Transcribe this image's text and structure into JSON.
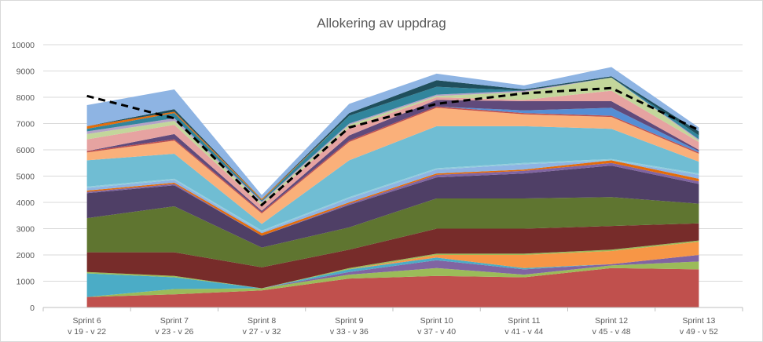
{
  "chart_data": {
    "type": "area",
    "stacked": true,
    "title": "Allokering av uppdrag",
    "categories": [
      [
        "Sprint 6",
        "v 19 - v 22"
      ],
      [
        "Sprint 7",
        "v 23 - v 26"
      ],
      [
        "Sprint 8",
        "v 27 - v 32"
      ],
      [
        "Sprint 9",
        "v 33 - v 36"
      ],
      [
        "Sprint 10",
        "v 37 - v 40"
      ],
      [
        "Sprint 11",
        "v 41 - v 44"
      ],
      [
        "Sprint 12",
        "v 45 - v 48"
      ],
      [
        "Sprint 13",
        "v 49 - v 52"
      ]
    ],
    "ylim": [
      0,
      10000
    ],
    "yticks": [
      0,
      1000,
      2000,
      3000,
      4000,
      5000,
      6000,
      7000,
      8000,
      9000,
      10000
    ],
    "grid": true,
    "legend": "none",
    "series": [
      {
        "color": "#c0504d",
        "values": [
          400,
          500,
          650,
          1100,
          1200,
          1150,
          1500,
          1450
        ]
      },
      {
        "color": "#9bbb59",
        "values": [
          0,
          200,
          80,
          150,
          300,
          100,
          100,
          300
        ]
      },
      {
        "color": "#8064a2",
        "values": [
          0,
          0,
          0,
          100,
          300,
          200,
          50,
          250
        ]
      },
      {
        "color": "#4bacc6",
        "values": [
          900,
          450,
          0,
          100,
          100,
          50,
          0,
          0
        ]
      },
      {
        "color": "#f79646",
        "values": [
          0,
          0,
          0,
          0,
          100,
          500,
          500,
          500
        ]
      },
      {
        "color": "#9bbb59",
        "values": [
          50,
          50,
          0,
          50,
          50,
          50,
          50,
          50
        ]
      },
      {
        "color": "#772c2a",
        "values": [
          750,
          900,
          800,
          700,
          950,
          950,
          900,
          650
        ]
      },
      {
        "color": "#5f7530",
        "values": [
          1300,
          1750,
          750,
          850,
          1150,
          1150,
          1100,
          750
        ]
      },
      {
        "color": "#4f3f66",
        "values": [
          950,
          800,
          450,
          850,
          800,
          950,
          1200,
          750
        ]
      },
      {
        "color": "#8064a2",
        "values": [
          50,
          50,
          0,
          50,
          100,
          100,
          100,
          100
        ]
      },
      {
        "color": "#e46c0a",
        "values": [
          50,
          50,
          100,
          50,
          50,
          50,
          100,
          100
        ]
      },
      {
        "color": "#8eb4e3",
        "values": [
          100,
          100,
          50,
          150,
          150,
          200,
          0,
          150
        ]
      },
      {
        "color": "#92cddc",
        "values": [
          50,
          50,
          50,
          50,
          50,
          50,
          50,
          50
        ]
      },
      {
        "color": "#70bdd3",
        "values": [
          1000,
          950,
          250,
          1400,
          1600,
          1400,
          1150,
          450
        ]
      },
      {
        "color": "#fab07a",
        "values": [
          300,
          500,
          400,
          700,
          700,
          450,
          450,
          300
        ]
      },
      {
        "color": "#c0504d",
        "values": [
          50,
          50,
          50,
          50,
          50,
          50,
          50,
          50
        ]
      },
      {
        "color": "#558ed5",
        "values": [
          0,
          0,
          0,
          0,
          0,
          100,
          300,
          50
        ]
      },
      {
        "color": "#604a7b",
        "values": [
          0,
          200,
          50,
          200,
          250,
          350,
          250,
          50
        ]
      },
      {
        "color": "#e6a3a1",
        "values": [
          450,
          350,
          200,
          300,
          100,
          50,
          400,
          300
        ]
      },
      {
        "color": "#c3d69b",
        "values": [
          200,
          150,
          100,
          100,
          50,
          300,
          500,
          50
        ]
      },
      {
        "color": "#b3a2c7",
        "values": [
          100,
          100,
          50,
          50,
          50,
          50,
          0,
          50
        ]
      },
      {
        "color": "#31859c",
        "values": [
          100,
          200,
          50,
          300,
          300,
          0,
          0,
          150
        ]
      },
      {
        "color": "#e46c0a",
        "values": [
          100,
          50,
          50,
          0,
          0,
          0,
          0,
          0
        ]
      },
      {
        "color": "#1f4f5c",
        "values": [
          0,
          100,
          0,
          100,
          250,
          50,
          50,
          150
        ]
      },
      {
        "color": "#8eb4e3",
        "values": [
          800,
          750,
          150,
          350,
          250,
          150,
          350,
          150
        ]
      }
    ],
    "line": {
      "color": "#000000",
      "dashed": true,
      "values": [
        8050,
        7200,
        3900,
        6850,
        7750,
        8150,
        8350,
        6750
      ]
    }
  }
}
